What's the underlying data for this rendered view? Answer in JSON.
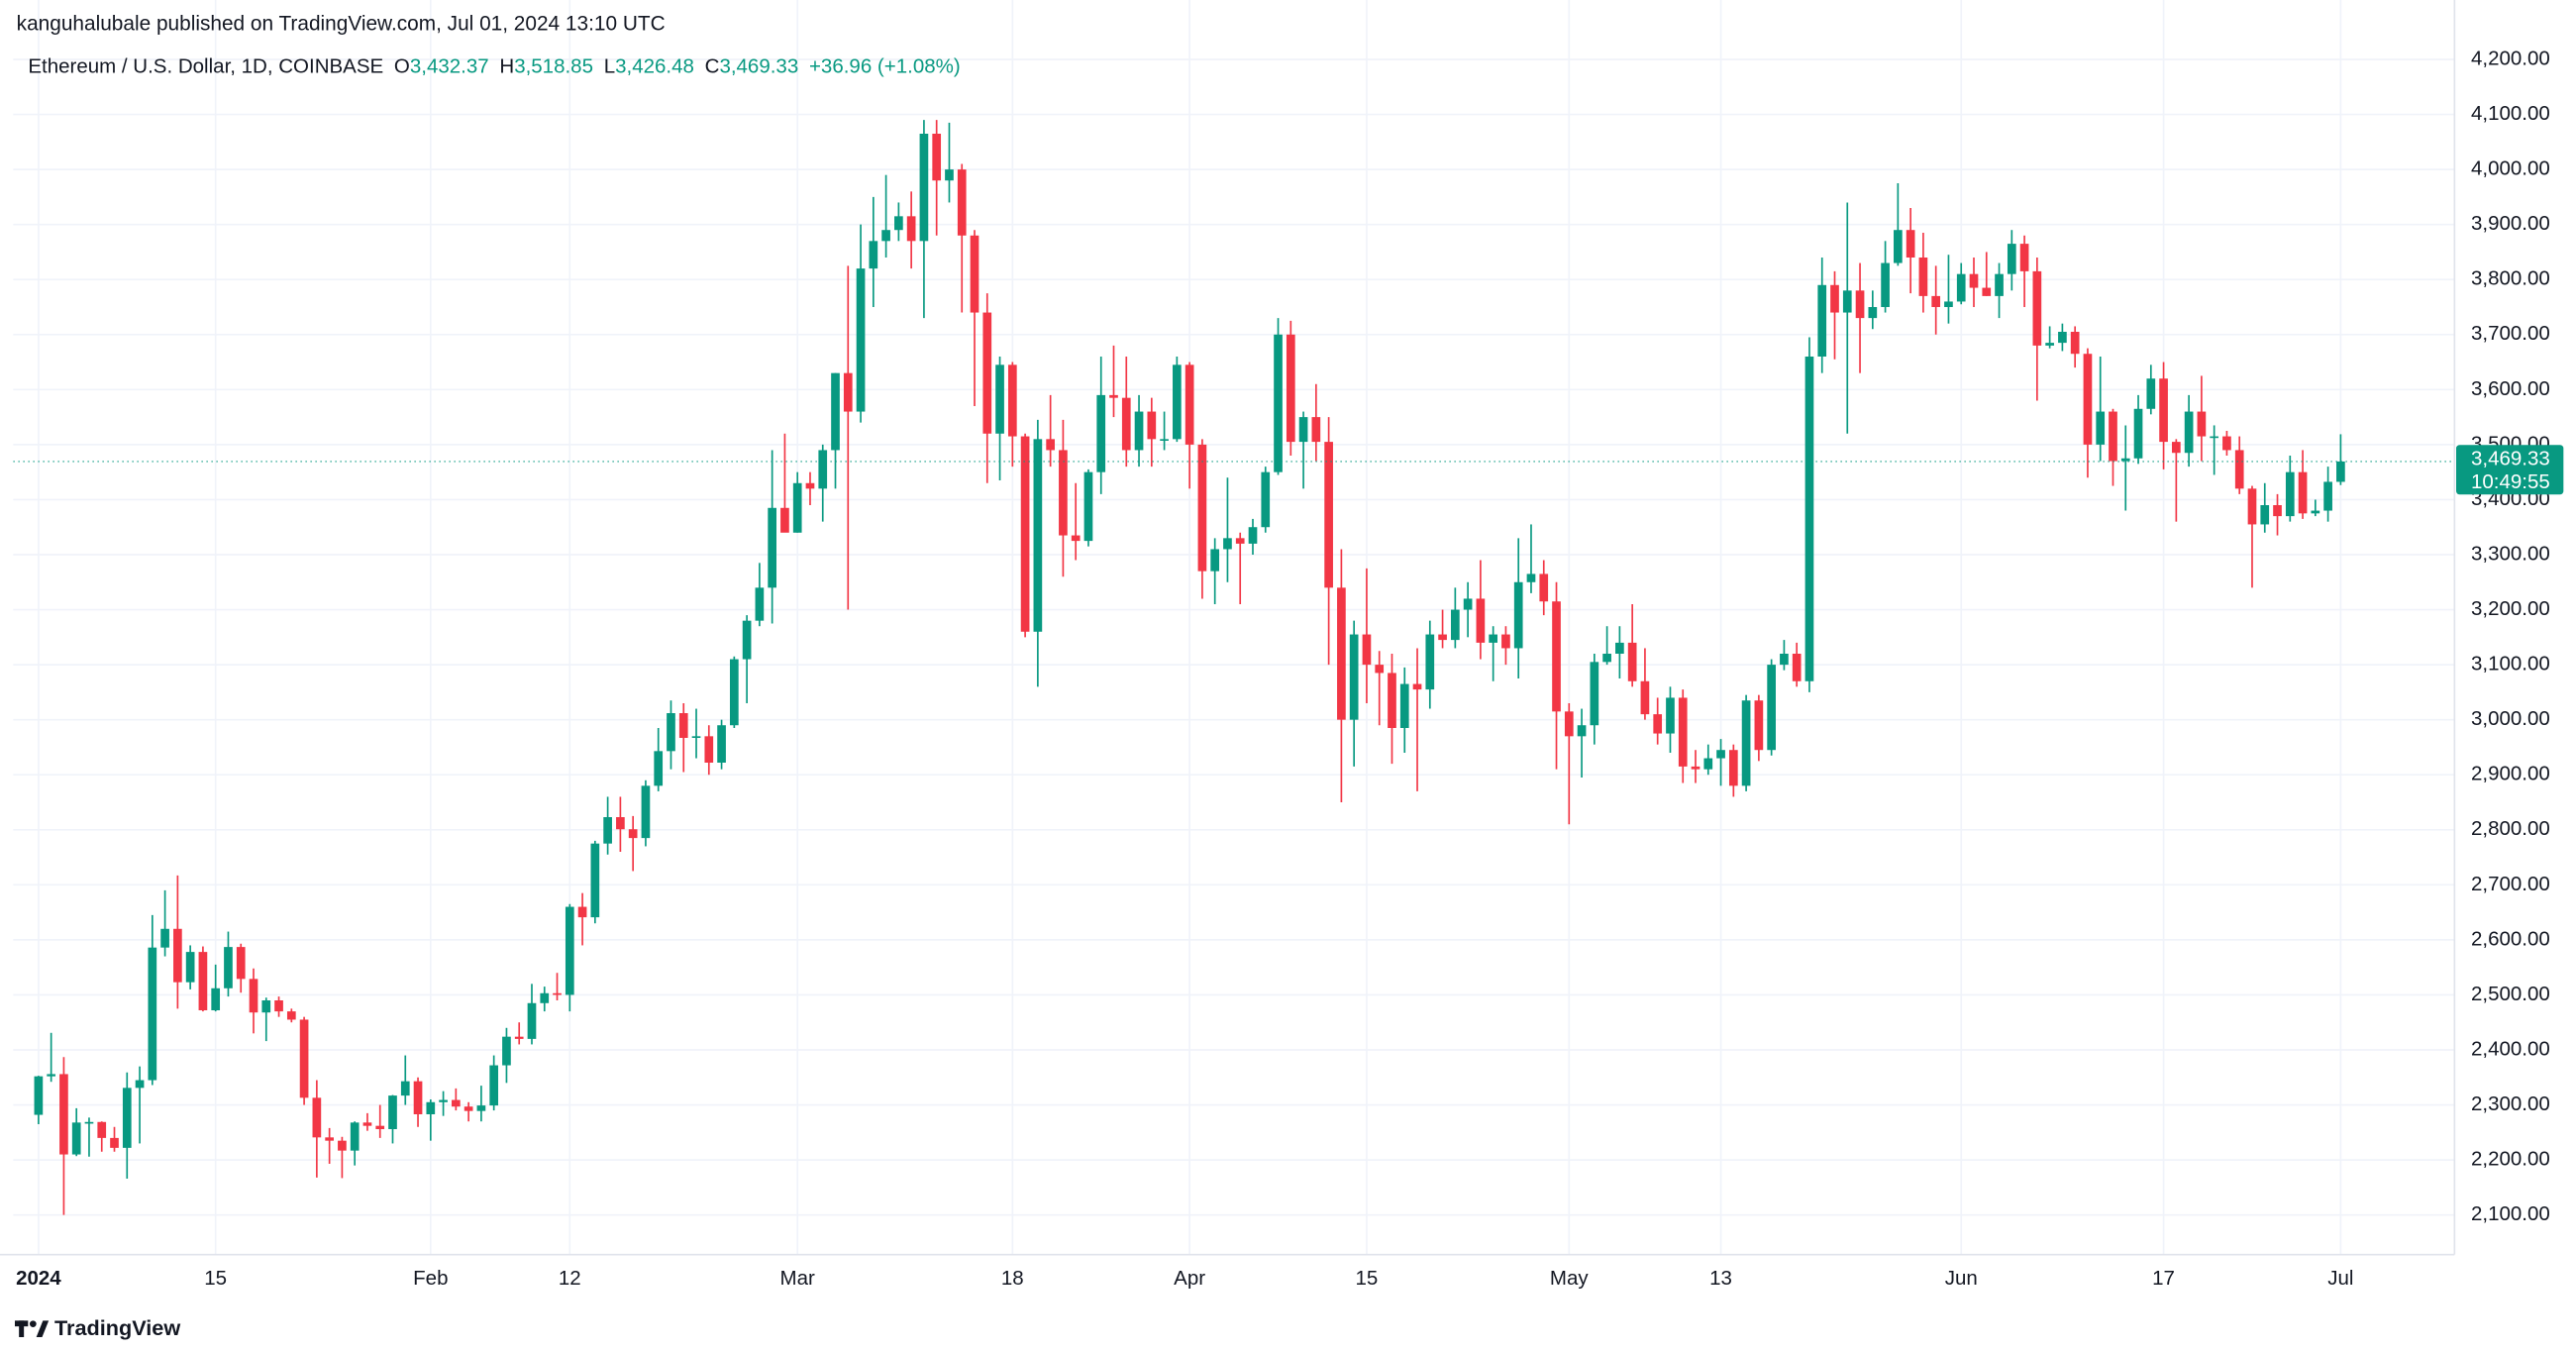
{
  "header": {
    "published": "kanguhalubale published on TradingView.com, Jul 01, 2024 13:10 UTC"
  },
  "legend": {
    "symbol": "Ethereum / U.S. Dollar, 1D, COINBASE",
    "o_key": "O",
    "open": "3,432.37",
    "h_key": "H",
    "high": "3,518.85",
    "l_key": "L",
    "low": "3,426.48",
    "c_key": "C",
    "close": "3,469.33",
    "change": "+36.96 (+1.08%)"
  },
  "price_tag": {
    "price": "3,469.33",
    "countdown": "10:49:55"
  },
  "footer": {
    "brand": "TradingView"
  },
  "chart_data": {
    "type": "candlestick",
    "up_color": "#089981",
    "down_color": "#f23645",
    "grid": true,
    "last_price": 3469.33,
    "x": [
      "2024-01-01",
      "2024-01-02",
      "2024-01-03",
      "2024-01-04",
      "2024-01-05",
      "2024-01-06",
      "2024-01-07",
      "2024-01-08",
      "2024-01-09",
      "2024-01-10",
      "2024-01-11",
      "2024-01-12",
      "2024-01-13",
      "2024-01-14",
      "2024-01-15",
      "2024-01-16",
      "2024-01-17",
      "2024-01-18",
      "2024-01-19",
      "2024-01-20",
      "2024-01-21",
      "2024-01-22",
      "2024-01-23",
      "2024-01-24",
      "2024-01-25",
      "2024-01-26",
      "2024-01-27",
      "2024-01-28",
      "2024-01-29",
      "2024-01-30",
      "2024-01-31",
      "2024-02-01",
      "2024-02-02",
      "2024-02-03",
      "2024-02-04",
      "2024-02-05",
      "2024-02-06",
      "2024-02-07",
      "2024-02-08",
      "2024-02-09",
      "2024-02-10",
      "2024-02-11",
      "2024-02-12",
      "2024-02-13",
      "2024-02-14",
      "2024-02-15",
      "2024-02-16",
      "2024-02-17",
      "2024-02-18",
      "2024-02-19",
      "2024-02-20",
      "2024-02-21",
      "2024-02-22",
      "2024-02-23",
      "2024-02-24",
      "2024-02-25",
      "2024-02-26",
      "2024-02-27",
      "2024-02-28",
      "2024-02-29",
      "2024-03-01",
      "2024-03-02",
      "2024-03-03",
      "2024-03-04",
      "2024-03-05",
      "2024-03-06",
      "2024-03-07",
      "2024-03-08",
      "2024-03-09",
      "2024-03-10",
      "2024-03-11",
      "2024-03-12",
      "2024-03-13",
      "2024-03-14",
      "2024-03-15",
      "2024-03-16",
      "2024-03-17",
      "2024-03-18",
      "2024-03-19",
      "2024-03-20",
      "2024-03-21",
      "2024-03-22",
      "2024-03-23",
      "2024-03-24",
      "2024-03-25",
      "2024-03-26",
      "2024-03-27",
      "2024-03-28",
      "2024-03-29",
      "2024-03-30",
      "2024-03-31",
      "2024-04-01",
      "2024-04-02",
      "2024-04-03",
      "2024-04-04",
      "2024-04-05",
      "2024-04-06",
      "2024-04-07",
      "2024-04-08",
      "2024-04-09",
      "2024-04-10",
      "2024-04-11",
      "2024-04-12",
      "2024-04-13",
      "2024-04-14",
      "2024-04-15",
      "2024-04-16",
      "2024-04-17",
      "2024-04-18",
      "2024-04-19",
      "2024-04-20",
      "2024-04-21",
      "2024-04-22",
      "2024-04-23",
      "2024-04-24",
      "2024-04-25",
      "2024-04-26",
      "2024-04-27",
      "2024-04-28",
      "2024-04-29",
      "2024-04-30",
      "2024-05-01",
      "2024-05-02",
      "2024-05-03",
      "2024-05-04",
      "2024-05-05",
      "2024-05-06",
      "2024-05-07",
      "2024-05-08",
      "2024-05-09",
      "2024-05-10",
      "2024-05-11",
      "2024-05-12",
      "2024-05-13",
      "2024-05-14",
      "2024-05-15",
      "2024-05-16",
      "2024-05-17",
      "2024-05-18",
      "2024-05-19",
      "2024-05-20",
      "2024-05-21",
      "2024-05-22",
      "2024-05-23",
      "2024-05-24",
      "2024-05-25",
      "2024-05-26",
      "2024-05-27",
      "2024-05-28",
      "2024-05-29",
      "2024-05-30",
      "2024-05-31",
      "2024-06-01",
      "2024-06-02",
      "2024-06-03",
      "2024-06-04",
      "2024-06-05",
      "2024-06-06",
      "2024-06-07",
      "2024-06-08",
      "2024-06-09",
      "2024-06-10",
      "2024-06-11",
      "2024-06-12",
      "2024-06-13",
      "2024-06-14",
      "2024-06-15",
      "2024-06-16",
      "2024-06-17",
      "2024-06-18",
      "2024-06-19",
      "2024-06-20",
      "2024-06-21",
      "2024-06-22",
      "2024-06-23",
      "2024-06-24",
      "2024-06-25",
      "2024-06-26",
      "2024-06-27",
      "2024-06-28",
      "2024-06-29",
      "2024-06-30",
      "2024-07-01"
    ],
    "open": [
      2282,
      2352,
      2356,
      2210,
      2268,
      2269,
      2240,
      2222,
      2331,
      2345,
      2586,
      2620,
      2523,
      2578,
      2472,
      2512,
      2587,
      2529,
      2468,
      2490,
      2470,
      2455,
      2313,
      2241,
      2235,
      2217,
      2268,
      2262,
      2256,
      2317,
      2343,
      2283,
      2305,
      2309,
      2297,
      2289,
      2299,
      2372,
      2424,
      2420,
      2485,
      2503,
      2500,
      2660,
      2641,
      2775,
      2823,
      2801,
      2785,
      2880,
      2943,
      3012,
      2967,
      2970,
      2922,
      2990,
      3110,
      3180,
      3240,
      3385,
      3340,
      3430,
      3420,
      3490,
      3630,
      3560,
      3820,
      3870,
      3890,
      3915,
      3870,
      4065,
      3980,
      4000,
      3880,
      3740,
      3520,
      3645,
      3515,
      3160,
      3510,
      3490,
      3335,
      3325,
      3450,
      3590,
      3585,
      3490,
      3560,
      3510,
      3510,
      3645,
      3500,
      3270,
      3310,
      3330,
      3320,
      3350,
      3450,
      3700,
      3505,
      3550,
      3505,
      3240,
      3000,
      3155,
      3100,
      3085,
      2985,
      3065,
      3055,
      3155,
      3145,
      3200,
      3220,
      3140,
      3155,
      3130,
      3250,
      3265,
      3215,
      3015,
      2970,
      2990,
      3105,
      3120,
      3140,
      3070,
      3010,
      2975,
      3040,
      2915,
      2910,
      2930,
      2945,
      2880,
      3035,
      2945,
      3100,
      3120,
      3070,
      3660,
      3790,
      3740,
      3780,
      3730,
      3750,
      3830,
      3890,
      3840,
      3770,
      3750,
      3760,
      3810,
      3785,
      3770,
      3810,
      3865,
      3815,
      3680,
      3685,
      3705,
      3665,
      3500,
      3560,
      3470,
      3475,
      3565,
      3620,
      3505,
      3485,
      3560,
      3515,
      3515,
      3490,
      3420,
      3355,
      3390,
      3370,
      3450,
      3375,
      3380,
      3432.37
    ],
    "high": [
      2353,
      2431,
      2387,
      2294,
      2277,
      2270,
      2260,
      2359,
      2370,
      2645,
      2690,
      2717,
      2590,
      2588,
      2555,
      2615,
      2593,
      2548,
      2495,
      2497,
      2475,
      2460,
      2345,
      2258,
      2242,
      2270,
      2285,
      2300,
      2318,
      2390,
      2350,
      2310,
      2325,
      2330,
      2305,
      2335,
      2390,
      2440,
      2450,
      2520,
      2515,
      2540,
      2665,
      2685,
      2780,
      2860,
      2860,
      2825,
      2890,
      2985,
      3035,
      3030,
      3020,
      2990,
      3000,
      3115,
      3190,
      3285,
      3490,
      3520,
      3450,
      3450,
      3500,
      3630,
      3825,
      3900,
      3950,
      3990,
      3940,
      3960,
      4090,
      4090,
      4085,
      4010,
      3890,
      3775,
      3660,
      3650,
      3520,
      3545,
      3590,
      3545,
      3430,
      3455,
      3660,
      3680,
      3660,
      3590,
      3585,
      3560,
      3660,
      3650,
      3510,
      3330,
      3440,
      3340,
      3365,
      3460,
      3730,
      3725,
      3560,
      3610,
      3550,
      3310,
      3180,
      3275,
      3125,
      3120,
      3095,
      3130,
      3180,
      3200,
      3240,
      3250,
      3290,
      3170,
      3170,
      3330,
      3355,
      3290,
      3250,
      3030,
      3020,
      3120,
      3170,
      3170,
      3210,
      3130,
      3040,
      3060,
      3055,
      2945,
      2955,
      2965,
      2955,
      3045,
      3045,
      3110,
      3145,
      3140,
      3695,
      3840,
      3815,
      3940,
      3830,
      3780,
      3870,
      3975,
      3930,
      3885,
      3825,
      3845,
      3830,
      3840,
      3850,
      3830,
      3890,
      3880,
      3840,
      3715,
      3720,
      3715,
      3675,
      3660,
      3565,
      3535,
      3590,
      3645,
      3650,
      3510,
      3590,
      3625,
      3535,
      3525,
      3515,
      3425,
      3430,
      3410,
      3480,
      3490,
      3400,
      3460,
      3518.85
    ],
    "low": [
      2265,
      2342,
      2100,
      2207,
      2206,
      2215,
      2215,
      2166,
      2230,
      2336,
      2570,
      2475,
      2510,
      2470,
      2470,
      2497,
      2504,
      2430,
      2416,
      2460,
      2450,
      2300,
      2168,
      2193,
      2167,
      2190,
      2253,
      2240,
      2230,
      2300,
      2260,
      2235,
      2280,
      2290,
      2270,
      2270,
      2290,
      2340,
      2410,
      2410,
      2470,
      2490,
      2470,
      2590,
      2630,
      2755,
      2760,
      2725,
      2770,
      2870,
      2910,
      2905,
      2930,
      2900,
      2910,
      2985,
      3030,
      3170,
      3175,
      3350,
      3340,
      3390,
      3360,
      3420,
      3200,
      3540,
      3750,
      3840,
      3870,
      3820,
      3730,
      3880,
      3940,
      3740,
      3570,
      3430,
      3435,
      3460,
      3150,
      3060,
      3460,
      3260,
      3290,
      3315,
      3410,
      3550,
      3460,
      3460,
      3460,
      3490,
      3505,
      3420,
      3220,
      3210,
      3250,
      3210,
      3300,
      3340,
      3445,
      3480,
      3420,
      3470,
      3100,
      2850,
      2915,
      3030,
      2990,
      2920,
      2940,
      2870,
      3020,
      3130,
      3130,
      3150,
      3110,
      3070,
      3100,
      3075,
      3230,
      3190,
      2910,
      2810,
      2895,
      2955,
      3100,
      3075,
      3060,
      3000,
      2955,
      2940,
      2885,
      2885,
      2900,
      2880,
      2860,
      2870,
      2925,
      2935,
      3090,
      3060,
      3050,
      3630,
      3655,
      3520,
      3630,
      3710,
      3740,
      3825,
      3775,
      3740,
      3700,
      3720,
      3755,
      3750,
      3770,
      3730,
      3780,
      3750,
      3580,
      3675,
      3670,
      3640,
      3440,
      3470,
      3425,
      3380,
      3465,
      3555,
      3455,
      3360,
      3460,
      3470,
      3445,
      3480,
      3410,
      3240,
      3340,
      3335,
      3360,
      3365,
      3370,
      3360,
      3426.48
    ],
    "close": [
      2352,
      2356,
      2210,
      2268,
      2269,
      2240,
      2222,
      2331,
      2345,
      2586,
      2620,
      2523,
      2578,
      2472,
      2512,
      2587,
      2529,
      2468,
      2490,
      2470,
      2455,
      2313,
      2241,
      2235,
      2217,
      2268,
      2262,
      2256,
      2317,
      2343,
      2283,
      2305,
      2309,
      2297,
      2289,
      2299,
      2372,
      2424,
      2420,
      2485,
      2503,
      2500,
      2660,
      2641,
      2775,
      2823,
      2801,
      2785,
      2880,
      2943,
      3012,
      2967,
      2970,
      2922,
      2990,
      3110,
      3180,
      3240,
      3385,
      3340,
      3430,
      3420,
      3490,
      3630,
      3560,
      3820,
      3870,
      3890,
      3915,
      3870,
      4065,
      3980,
      4000,
      3880,
      3740,
      3520,
      3645,
      3515,
      3160,
      3510,
      3490,
      3335,
      3325,
      3450,
      3590,
      3585,
      3490,
      3560,
      3510,
      3510,
      3645,
      3500,
      3270,
      3310,
      3330,
      3320,
      3350,
      3450,
      3700,
      3505,
      3550,
      3505,
      3240,
      3000,
      3155,
      3100,
      3085,
      2985,
      3065,
      3055,
      3155,
      3145,
      3200,
      3220,
      3140,
      3155,
      3130,
      3250,
      3265,
      3215,
      3015,
      2970,
      2990,
      3105,
      3120,
      3140,
      3070,
      3010,
      2975,
      3040,
      2915,
      2910,
      2930,
      2945,
      2880,
      3035,
      2945,
      3100,
      3120,
      3070,
      3660,
      3790,
      3740,
      3780,
      3730,
      3750,
      3830,
      3890,
      3840,
      3770,
      3750,
      3760,
      3810,
      3785,
      3770,
      3810,
      3865,
      3815,
      3680,
      3685,
      3705,
      3665,
      3500,
      3560,
      3470,
      3475,
      3565,
      3620,
      3505,
      3485,
      3560,
      3515,
      3515,
      3490,
      3420,
      3355,
      3390,
      3370,
      3450,
      3375,
      3380,
      3432.37,
      3469.33
    ],
    "xlim": [
      "2023-12-30",
      "2024-07-10"
    ],
    "xticks": [
      {
        "value": "2024-01-01",
        "label": "2024"
      },
      {
        "value": "2024-01-15",
        "label": "15"
      },
      {
        "value": "2024-02-01",
        "label": "Feb"
      },
      {
        "value": "2024-02-12",
        "label": "12"
      },
      {
        "value": "2024-03-01",
        "label": "Mar"
      },
      {
        "value": "2024-03-18",
        "label": "18"
      },
      {
        "value": "2024-04-01",
        "label": "Apr"
      },
      {
        "value": "2024-04-15",
        "label": "15"
      },
      {
        "value": "2024-05-01",
        "label": "May"
      },
      {
        "value": "2024-05-13",
        "label": "13"
      },
      {
        "value": "2024-06-01",
        "label": "Jun"
      },
      {
        "value": "2024-06-17",
        "label": "17"
      },
      {
        "value": "2024-07-01",
        "label": "Jul"
      }
    ],
    "ylim": [
      2028,
      4233
    ],
    "yticks": [
      {
        "value": 2100,
        "label": "2,100.00"
      },
      {
        "value": 2200,
        "label": "2,200.00"
      },
      {
        "value": 2300,
        "label": "2,300.00"
      },
      {
        "value": 2400,
        "label": "2,400.00"
      },
      {
        "value": 2500,
        "label": "2,500.00"
      },
      {
        "value": 2600,
        "label": "2,600.00"
      },
      {
        "value": 2700,
        "label": "2,700.00"
      },
      {
        "value": 2800,
        "label": "2,800.00"
      },
      {
        "value": 2900,
        "label": "2,900.00"
      },
      {
        "value": 3000,
        "label": "3,000.00"
      },
      {
        "value": 3100,
        "label": "3,100.00"
      },
      {
        "value": 3200,
        "label": "3,200.00"
      },
      {
        "value": 3300,
        "label": "3,300.00"
      },
      {
        "value": 3400,
        "label": "3,400.00"
      },
      {
        "value": 3500,
        "label": "3,500.00"
      },
      {
        "value": 3600,
        "label": "3,600.00"
      },
      {
        "value": 3700,
        "label": "3,700.00"
      },
      {
        "value": 3800,
        "label": "3,800.00"
      },
      {
        "value": 3900,
        "label": "3,900.00"
      },
      {
        "value": 4000,
        "label": "4,000.00"
      },
      {
        "value": 4100,
        "label": "4,100.00"
      },
      {
        "value": 4200,
        "label": "4,200.00"
      }
    ]
  }
}
